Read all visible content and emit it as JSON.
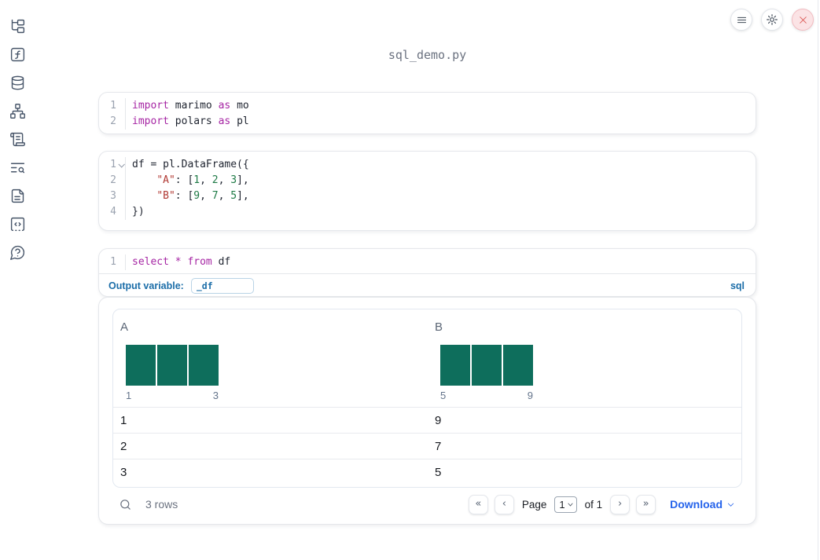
{
  "app": {
    "title": "sql_demo.py"
  },
  "colors": {
    "keyword": "#a626a4",
    "string": "#b13a34",
    "number": "#1e7a46",
    "code_text": "#1f2430",
    "bar": "#0e6e5c",
    "accent": "#1b6da8",
    "link": "#2563eb",
    "danger": "#dc5b57"
  },
  "sidebar": {
    "items": [
      {
        "icon": "file-explorer-icon"
      },
      {
        "icon": "functions-icon"
      },
      {
        "icon": "datasources-icon"
      },
      {
        "icon": "dependencies-icon"
      },
      {
        "icon": "scratchpad-icon"
      },
      {
        "icon": "logs-search-icon"
      },
      {
        "icon": "documentation-icon"
      },
      {
        "icon": "snippets-icon"
      },
      {
        "icon": "help-icon"
      }
    ]
  },
  "toolbar": {
    "buttons": [
      "menu",
      "settings",
      "close"
    ]
  },
  "cells": {
    "imports": {
      "lines": [
        {
          "num": "1",
          "fold": false,
          "tokens": [
            [
              "import",
              "kw"
            ],
            [
              " marimo ",
              "pl"
            ],
            [
              "as",
              "kw"
            ],
            [
              " mo",
              "pl"
            ]
          ]
        },
        {
          "num": "2",
          "fold": false,
          "tokens": [
            [
              "import",
              "kw"
            ],
            [
              " polars ",
              "pl"
            ],
            [
              "as",
              "kw"
            ],
            [
              " pl",
              "pl"
            ]
          ]
        }
      ]
    },
    "dataframe": {
      "lines": [
        {
          "num": "1",
          "fold": true,
          "tokens": [
            [
              "df = pl.DataFrame({",
              "pl"
            ]
          ]
        },
        {
          "num": "2",
          "fold": false,
          "tokens": [
            [
              "    ",
              "pl"
            ],
            [
              "\"A\"",
              "str"
            ],
            [
              ": [",
              "pl"
            ],
            [
              "1",
              "num"
            ],
            [
              ", ",
              "pl"
            ],
            [
              "2",
              "num"
            ],
            [
              ", ",
              "pl"
            ],
            [
              "3",
              "num"
            ],
            [
              "],",
              "pl"
            ]
          ]
        },
        {
          "num": "3",
          "fold": false,
          "tokens": [
            [
              "    ",
              "pl"
            ],
            [
              "\"B\"",
              "str"
            ],
            [
              ": [",
              "pl"
            ],
            [
              "9",
              "num"
            ],
            [
              ", ",
              "pl"
            ],
            [
              "7",
              "num"
            ],
            [
              ", ",
              "pl"
            ],
            [
              "5",
              "num"
            ],
            [
              "],",
              "pl"
            ]
          ]
        },
        {
          "num": "4",
          "fold": false,
          "tokens": [
            [
              "})",
              "pl"
            ]
          ]
        }
      ]
    },
    "sql": {
      "lines": [
        {
          "num": "1",
          "fold": false,
          "tokens": [
            [
              "select",
              "kw"
            ],
            [
              " ",
              "pl"
            ],
            [
              "*",
              "kw"
            ],
            [
              " ",
              "pl"
            ],
            [
              "from",
              "kw"
            ],
            [
              " df",
              "pl"
            ]
          ]
        }
      ],
      "output_variable_label": "Output variable:",
      "output_variable_value": "_df",
      "language_badge": "sql"
    }
  },
  "table": {
    "columns": [
      {
        "name": "A",
        "bars": [
          1,
          1,
          1
        ],
        "hist_min": "1",
        "hist_max": "3"
      },
      {
        "name": "B",
        "bars": [
          1,
          1,
          1
        ],
        "hist_min": "5",
        "hist_max": "9"
      }
    ],
    "rows": [
      [
        "1",
        "9"
      ],
      [
        "2",
        "7"
      ],
      [
        "3",
        "5"
      ]
    ],
    "footer": {
      "row_count": "3 rows",
      "first": "«",
      "prev": "‹",
      "next": "›",
      "last": "»",
      "page_label": "Page",
      "page_value": "1",
      "of_label": "of 1",
      "download_label": "Download"
    }
  }
}
